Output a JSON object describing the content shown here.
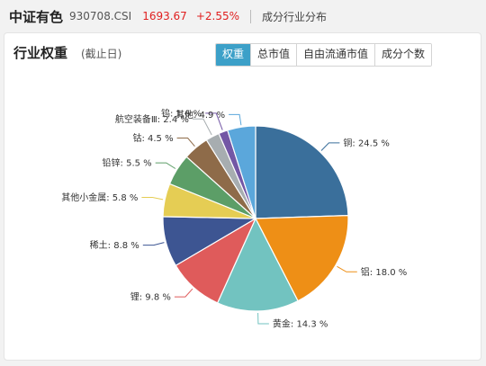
{
  "header": {
    "name": "中证有色",
    "code": "930708.CSI",
    "price": "1693.67",
    "change": "+2.55%",
    "section": "成分行业分布"
  },
  "card": {
    "title": "行业权重",
    "subtitle": "(截止日)",
    "tabs": [
      {
        "label": "权重",
        "active": true
      },
      {
        "label": "总市值",
        "active": false
      },
      {
        "label": "自由流通市值",
        "active": false
      },
      {
        "label": "成分个数",
        "active": false
      }
    ]
  },
  "chart_data": {
    "type": "pie",
    "slices": [
      {
        "name": "铜",
        "value": 24.5,
        "label": "铜: 24.5 %",
        "color": "#3a6f9b"
      },
      {
        "name": "铝",
        "value": 18.0,
        "label": "铝: 18.0 %",
        "color": "#ee8f16"
      },
      {
        "name": "黄金",
        "value": 14.3,
        "label": "黄金: 14.3 %",
        "color": "#72c3c0"
      },
      {
        "name": "锂",
        "value": 9.8,
        "label": "锂: 9.8 %",
        "color": "#df5b5b"
      },
      {
        "name": "稀土",
        "value": 8.8,
        "label": "稀土: 8.8 %",
        "color": "#3d5592"
      },
      {
        "name": "其他小金属",
        "value": 5.8,
        "label": "其他小金属: 5.8 %",
        "color": "#e5cd54"
      },
      {
        "name": "铅锌",
        "value": 5.5,
        "label": "铅锌: 5.5 %",
        "color": "#5c9e67"
      },
      {
        "name": "钴",
        "value": 4.5,
        "label": "钴: 4.5 %",
        "color": "#8e6b49"
      },
      {
        "name": "航空装备Ⅲ",
        "value": 2.4,
        "label": "航空装备Ⅲ: 2.4 %",
        "color": "#a7adb0"
      },
      {
        "name": "钨",
        "value": 1.6,
        "label": "钨: 1.6 %",
        "color": "#7357a5"
      },
      {
        "name": "其他",
        "value": 4.9,
        "label": "其他: 4.9 %",
        "color": "#5ba7db"
      }
    ]
  }
}
